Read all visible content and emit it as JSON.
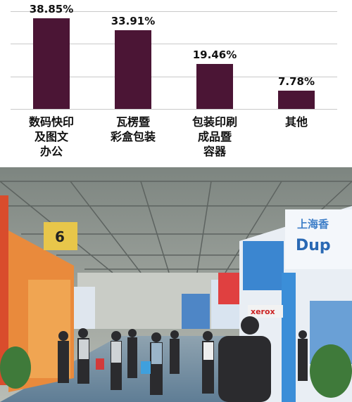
{
  "chart_data": {
    "type": "bar",
    "categories": [
      "数码快印\n及图文\n办公",
      "瓦楞暨\n彩盒包装",
      "包装印刷\n成品暨\n容器",
      "其他"
    ],
    "values": [
      38.85,
      33.91,
      19.46,
      7.78
    ],
    "value_labels": [
      "38.85%",
      "33.91%",
      "19.46%",
      "7.78%"
    ],
    "color": "#4b1535",
    "ylim": [
      0,
      42
    ],
    "yticks": [
      0,
      14,
      28,
      42
    ],
    "grid": true
  },
  "photo": {
    "signs": [
      "6",
      "Dup",
      "上海香",
      "xerox"
    ]
  }
}
